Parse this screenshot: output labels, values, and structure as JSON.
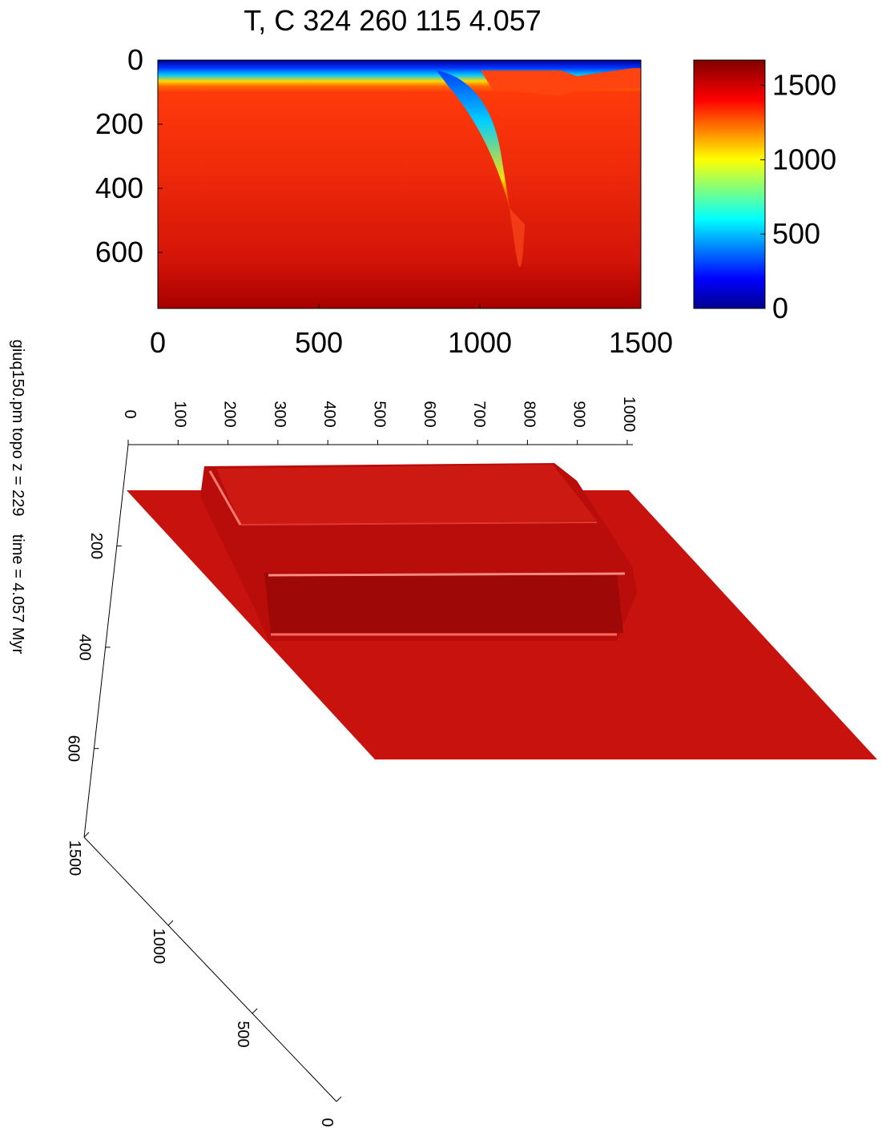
{
  "chart_data": [
    {
      "type": "heatmap",
      "title": "T, C 324 260 115 4.057",
      "xlim": [
        0,
        1500
      ],
      "xticks": [
        0,
        500,
        1000,
        1500
      ],
      "ylim": [
        0,
        775
      ],
      "yticks": [
        0,
        200,
        400,
        600
      ],
      "y_inverted": true,
      "colormap": "jet",
      "clim": [
        0,
        1670
      ],
      "cticks": [
        0,
        500,
        1000,
        1500
      ]
    },
    {
      "type": "surface3d",
      "title": "giuq150.pm topo z = 229    time = 4.057 Myr",
      "color": "#c8120e",
      "zlim": [
        0,
        1000
      ],
      "zticks": [
        0,
        100,
        200,
        300,
        400,
        500,
        600,
        700,
        800,
        900,
        1000
      ],
      "ylim": [
        0,
        775
      ],
      "yticks": [
        200,
        400,
        600
      ],
      "xlim": [
        0,
        1500
      ],
      "xticks": [
        0,
        500,
        1000,
        1500
      ]
    }
  ]
}
